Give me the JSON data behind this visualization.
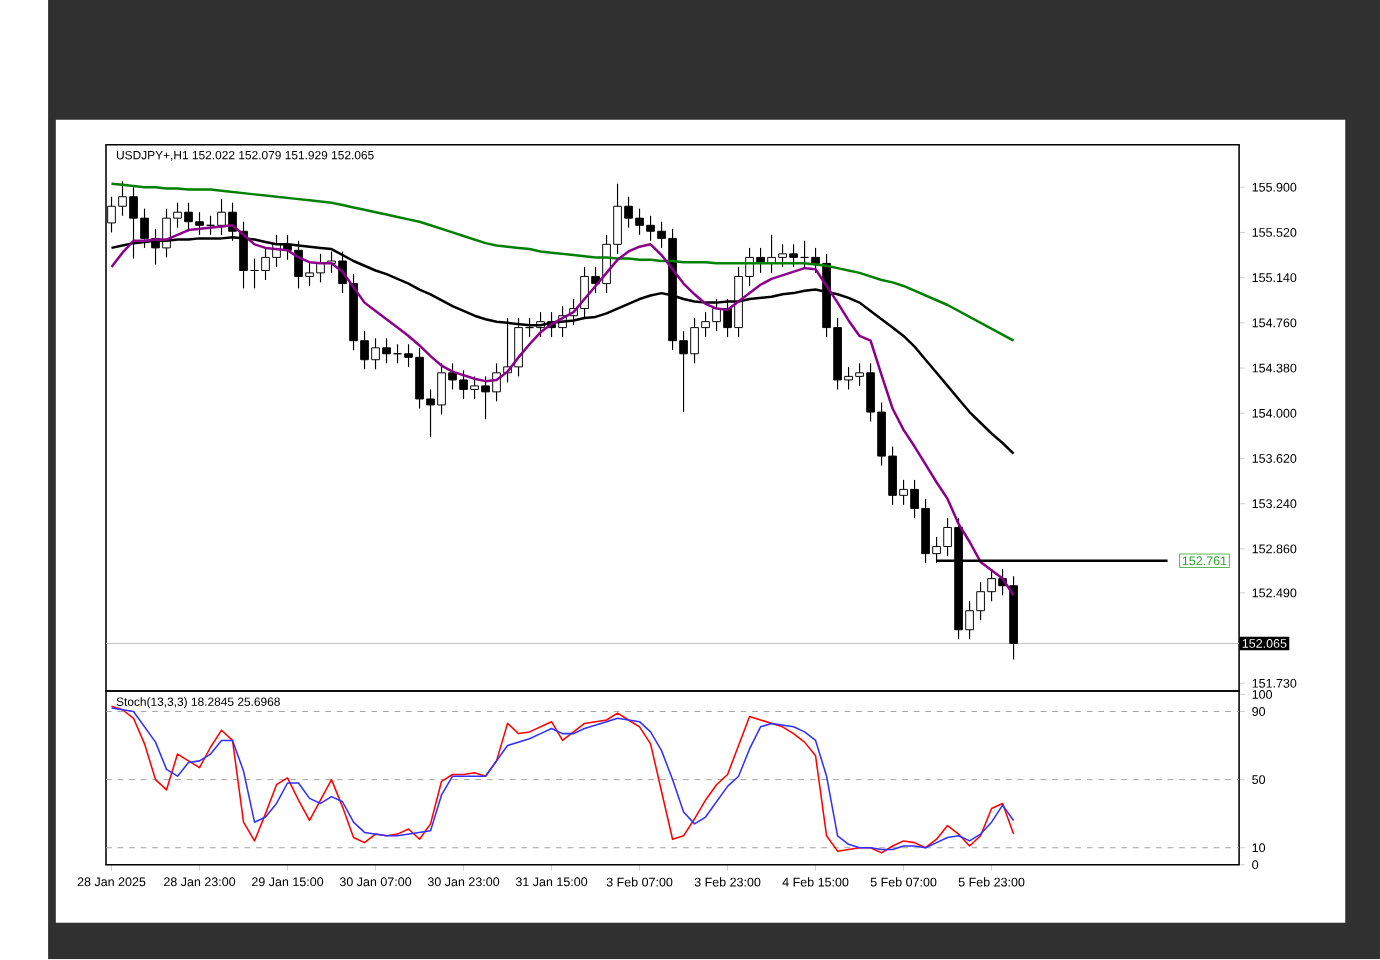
{
  "chart_data": [
    {
      "type": "candlestick",
      "title": "USDJPY+,H1  152.022 152.079 151.929 152.065",
      "color": "#000000",
      "categories": [
        null,
        null,
        null,
        null,
        null,
        null,
        null,
        null,
        null,
        null,
        null,
        null,
        null,
        null,
        null,
        null,
        null,
        null,
        null,
        null,
        null,
        null,
        null,
        null,
        null,
        null,
        null,
        null,
        null,
        null,
        null,
        null,
        null,
        null,
        null,
        null,
        null,
        null,
        null,
        null,
        null,
        null,
        null,
        null,
        null,
        null,
        null,
        null,
        null,
        null,
        null,
        null,
        null,
        null,
        null,
        null,
        null,
        null,
        null,
        null,
        null,
        null,
        null,
        null,
        null,
        null,
        null,
        null,
        null,
        null,
        null,
        null,
        null,
        null,
        null,
        null,
        null,
        null,
        null,
        null,
        null,
        null,
        null,
        null,
        null,
        null,
        null,
        null,
        null,
        null,
        null,
        null,
        null,
        null,
        null,
        null,
        null,
        null,
        null,
        null,
        null,
        null,
        null
      ],
      "ohlc": [
        [
          155.6,
          155.82,
          155.52,
          155.74
        ],
        [
          155.74,
          155.95,
          155.66,
          155.82
        ],
        [
          155.82,
          155.9,
          155.3,
          155.64
        ],
        [
          155.64,
          155.72,
          155.39,
          155.47
        ],
        [
          155.47,
          155.55,
          155.25,
          155.39
        ],
        [
          155.39,
          155.72,
          155.31,
          155.64
        ],
        [
          155.64,
          155.77,
          155.56,
          155.69
        ],
        [
          155.69,
          155.77,
          155.53,
          155.61
        ],
        [
          155.61,
          155.69,
          155.5,
          155.58
        ],
        [
          155.58,
          155.66,
          155.5,
          155.58
        ],
        [
          155.58,
          155.8,
          155.5,
          155.69
        ],
        [
          155.69,
          155.77,
          155.45,
          155.53
        ],
        [
          155.53,
          155.61,
          155.05,
          155.2
        ],
        [
          155.2,
          155.3,
          155.05,
          155.2
        ],
        [
          155.2,
          155.39,
          155.12,
          155.31
        ],
        [
          155.31,
          155.5,
          155.23,
          155.42
        ],
        [
          155.42,
          155.5,
          155.29,
          155.37
        ],
        [
          155.37,
          155.45,
          155.05,
          155.15
        ],
        [
          155.15,
          155.26,
          155.07,
          155.18
        ],
        [
          155.18,
          155.34,
          155.1,
          155.26
        ],
        [
          155.26,
          155.36,
          155.18,
          155.28
        ],
        [
          155.28,
          155.36,
          155.01,
          155.09
        ],
        [
          155.09,
          155.17,
          154.53,
          154.61
        ],
        [
          154.61,
          154.69,
          154.37,
          154.45
        ],
        [
          154.45,
          154.63,
          154.37,
          154.55
        ],
        [
          154.55,
          154.63,
          154.42,
          154.5
        ],
        [
          154.5,
          154.58,
          154.42,
          154.5
        ],
        [
          154.5,
          154.58,
          154.39,
          154.47
        ],
        [
          154.47,
          154.55,
          154.04,
          154.12
        ],
        [
          154.12,
          154.2,
          153.8,
          154.07
        ],
        [
          154.07,
          154.42,
          153.99,
          154.34
        ],
        [
          154.34,
          154.42,
          154.2,
          154.28
        ],
        [
          154.28,
          154.36,
          154.12,
          154.2
        ],
        [
          154.2,
          154.31,
          154.12,
          154.23
        ],
        [
          154.23,
          154.31,
          153.95,
          154.18
        ],
        [
          154.18,
          154.42,
          154.1,
          154.34
        ],
        [
          154.34,
          154.8,
          154.26,
          154.39
        ],
        [
          154.39,
          154.8,
          154.31,
          154.72
        ],
        [
          154.72,
          154.8,
          154.64,
          154.72
        ],
        [
          154.72,
          154.85,
          154.64,
          154.77
        ],
        [
          154.77,
          154.85,
          154.64,
          154.72
        ],
        [
          154.72,
          154.9,
          154.64,
          154.82
        ],
        [
          154.82,
          154.96,
          154.74,
          154.88
        ],
        [
          154.88,
          155.23,
          154.8,
          155.15
        ],
        [
          155.15,
          155.23,
          155.01,
          155.09
        ],
        [
          155.09,
          155.5,
          155.01,
          155.42
        ],
        [
          155.42,
          155.93,
          155.34,
          155.74
        ],
        [
          155.74,
          155.82,
          155.56,
          155.64
        ],
        [
          155.64,
          155.72,
          155.5,
          155.58
        ],
        [
          155.58,
          155.66,
          155.45,
          155.53
        ],
        [
          155.53,
          155.61,
          155.39,
          155.47
        ],
        [
          155.47,
          155.55,
          154.53,
          154.61
        ],
        [
          154.61,
          154.69,
          154.01,
          154.5
        ],
        [
          154.5,
          154.8,
          154.42,
          154.72
        ],
        [
          154.72,
          154.85,
          154.64,
          154.77
        ],
        [
          154.77,
          154.96,
          154.69,
          154.88
        ],
        [
          154.88,
          154.96,
          154.64,
          154.72
        ],
        [
          154.72,
          155.23,
          154.64,
          155.15
        ],
        [
          155.15,
          155.39,
          155.07,
          155.31
        ],
        [
          155.31,
          155.39,
          155.18,
          155.26
        ],
        [
          155.26,
          155.5,
          155.18,
          155.31
        ],
        [
          155.31,
          155.42,
          155.23,
          155.34
        ],
        [
          155.34,
          155.42,
          155.23,
          155.31
        ],
        [
          155.31,
          155.45,
          155.23,
          155.31
        ],
        [
          155.31,
          155.39,
          155.18,
          155.26
        ],
        [
          155.26,
          155.34,
          154.64,
          154.72
        ],
        [
          154.72,
          154.8,
          154.2,
          154.28
        ],
        [
          154.28,
          154.39,
          154.2,
          154.31
        ],
        [
          154.31,
          154.42,
          154.23,
          154.34
        ],
        [
          154.34,
          154.42,
          153.93,
          154.01
        ],
        [
          154.01,
          154.09,
          153.56,
          153.64
        ],
        [
          153.64,
          153.72,
          153.23,
          153.31
        ],
        [
          153.31,
          153.44,
          153.23,
          153.36
        ],
        [
          153.36,
          153.44,
          153.12,
          153.2
        ],
        [
          153.2,
          153.28,
          152.74,
          152.82
        ],
        [
          152.82,
          152.96,
          152.74,
          152.88
        ],
        [
          152.88,
          153.12,
          152.8,
          153.04
        ],
        [
          153.04,
          153.12,
          152.1,
          152.18
        ],
        [
          152.18,
          152.42,
          152.1,
          152.34
        ],
        [
          152.34,
          152.58,
          152.26,
          152.5
        ],
        [
          152.5,
          152.69,
          152.42,
          152.61
        ],
        [
          152.61,
          152.69,
          152.47,
          152.55
        ],
        [
          152.55,
          152.63,
          151.93,
          152.065
        ],
        null,
        null,
        null,
        null,
        null,
        null,
        null,
        null,
        null,
        null,
        null,
        null,
        null,
        null,
        null,
        null,
        null,
        null,
        null,
        null
      ],
      "series": [
        {
          "type": "line",
          "color": "#008000",
          "values": [
            155.93,
            155.92,
            155.91,
            155.9,
            155.9,
            155.89,
            155.89,
            155.88,
            155.88,
            155.88,
            155.87,
            155.86,
            155.85,
            155.84,
            155.83,
            155.82,
            155.81,
            155.8,
            155.79,
            155.78,
            155.77,
            155.75,
            155.73,
            155.71,
            155.69,
            155.67,
            155.65,
            155.63,
            155.61,
            155.58,
            155.55,
            155.52,
            155.49,
            155.46,
            155.43,
            155.41,
            155.4,
            155.39,
            155.38,
            155.36,
            155.35,
            155.34,
            155.33,
            155.32,
            155.31,
            155.31,
            155.3,
            155.3,
            155.29,
            155.29,
            155.28,
            155.28,
            155.27,
            155.27,
            155.27,
            155.26,
            155.26,
            155.26,
            155.26,
            155.26,
            155.26,
            155.26,
            155.26,
            155.26,
            155.25,
            155.24,
            155.22,
            155.2,
            155.18,
            155.15,
            155.12,
            155.1,
            155.07,
            155.03,
            154.99,
            154.95,
            154.91,
            154.86,
            154.81,
            154.76,
            154.71,
            154.66,
            154.61,
            null,
            null,
            null,
            null,
            null,
            null,
            null,
            null,
            null,
            null,
            null,
            null,
            null,
            null,
            null,
            null,
            null,
            null,
            null,
            null
          ]
        },
        {
          "type": "line",
          "color": "#000000",
          "values": [
            155.39,
            155.41,
            155.43,
            155.44,
            155.45,
            155.45,
            155.46,
            155.46,
            155.47,
            155.47,
            155.47,
            155.48,
            155.47,
            155.46,
            155.44,
            155.42,
            155.42,
            155.41,
            155.4,
            155.39,
            155.38,
            155.33,
            155.28,
            155.24,
            155.2,
            155.17,
            155.13,
            155.09,
            155.04,
            155.0,
            154.95,
            154.9,
            154.86,
            154.82,
            154.79,
            154.77,
            154.76,
            154.75,
            154.74,
            154.74,
            154.76,
            154.77,
            154.78,
            154.8,
            154.81,
            154.84,
            154.88,
            154.92,
            154.96,
            154.99,
            155.01,
            154.99,
            154.96,
            154.94,
            154.93,
            154.93,
            154.94,
            154.94,
            154.96,
            154.97,
            154.98,
            155.0,
            155.01,
            155.03,
            155.04,
            155.02,
            155.0,
            154.97,
            154.93,
            154.86,
            154.79,
            154.72,
            154.65,
            154.56,
            154.45,
            154.34,
            154.23,
            154.12,
            154.01,
            153.92,
            153.83,
            153.75,
            153.66,
            null,
            null,
            null,
            null,
            null,
            null,
            null,
            null,
            null,
            null,
            null,
            null,
            null,
            null,
            null,
            null,
            null,
            null,
            null,
            null
          ]
        },
        {
          "type": "line",
          "color": "#8b008b",
          "values": [
            155.23,
            155.35,
            155.45,
            155.45,
            155.46,
            155.46,
            155.5,
            155.54,
            155.55,
            155.56,
            155.57,
            155.58,
            155.5,
            155.42,
            155.39,
            155.38,
            155.37,
            155.31,
            155.27,
            155.26,
            155.26,
            155.19,
            155.06,
            154.93,
            154.86,
            154.79,
            154.72,
            154.65,
            154.57,
            154.48,
            154.4,
            154.35,
            154.32,
            154.29,
            154.27,
            154.28,
            154.35,
            154.47,
            154.58,
            154.68,
            154.75,
            154.8,
            154.85,
            154.96,
            155.07,
            155.18,
            155.29,
            155.36,
            155.4,
            155.42,
            155.33,
            155.21,
            155.09,
            155.0,
            154.92,
            154.88,
            154.87,
            154.94,
            155.01,
            155.08,
            155.13,
            155.16,
            155.19,
            155.22,
            155.21,
            155.07,
            154.93,
            154.78,
            154.65,
            154.61,
            154.32,
            154.04,
            153.86,
            153.72,
            153.57,
            153.42,
            153.28,
            153.07,
            152.92,
            152.75,
            152.68,
            152.61,
            152.47,
            null,
            null,
            null,
            null,
            null,
            null,
            null,
            null,
            null,
            null,
            null,
            null,
            null,
            null,
            null,
            null,
            null,
            null,
            null,
            null
          ]
        },
        {
          "type": "line",
          "color": "#000000",
          "values": [
            null,
            null,
            null,
            null,
            null,
            null,
            null,
            null,
            null,
            null,
            null,
            null,
            null,
            null,
            null,
            null,
            null,
            null,
            null,
            null,
            null,
            null,
            null,
            null,
            null,
            null,
            null,
            null,
            null,
            null,
            null,
            null,
            null,
            null,
            null,
            null,
            null,
            null,
            null,
            null,
            null,
            null,
            null,
            null,
            null,
            null,
            null,
            null,
            null,
            null,
            null,
            null,
            null,
            null,
            null,
            null,
            null,
            null,
            null,
            null,
            null,
            null,
            null,
            null,
            null,
            null,
            null,
            null,
            null,
            null,
            null,
            null,
            null,
            null,
            null,
            152.76,
            152.76,
            152.76,
            152.76,
            152.76,
            152.76,
            152.76,
            152.76,
            152.76,
            152.76,
            152.76,
            152.76,
            152.76,
            152.76,
            152.76,
            152.76,
            152.76,
            152.76,
            152.76,
            152.76,
            152.76,
            152.76,
            null,
            null,
            null,
            null,
            null,
            null
          ]
        }
      ],
      "ref_lines": [
        {
          "axis": "y",
          "value": 152.065,
          "label": "152.065",
          "color": "#c0c0c0",
          "line_style": "solid"
        }
      ],
      "annotations": [
        "152.761"
      ],
      "ylim": [
        151.665,
        156.257
      ],
      "yticks": [
        {
          "value": 155.9,
          "label": "155.900"
        },
        {
          "value": 155.52,
          "label": "155.520"
        },
        {
          "value": 155.14,
          "label": "155.140"
        },
        {
          "value": 154.76,
          "label": "154.760"
        },
        {
          "value": 154.38,
          "label": "154.380"
        },
        {
          "value": 154.0,
          "label": "154.000"
        },
        {
          "value": 153.62,
          "label": "153.620"
        },
        {
          "value": 153.24,
          "label": "153.240"
        },
        {
          "value": 152.86,
          "label": "152.860"
        },
        {
          "value": 152.49,
          "label": "152.490"
        },
        {
          "value": 151.73,
          "label": "151.730"
        }
      ],
      "tick_labels": "y"
    },
    {
      "type": "line",
      "title": "Stoch(13,3,3) 18.2845 25.6968",
      "categories": [
        "28 Jan 2025",
        null,
        null,
        null,
        null,
        null,
        null,
        null,
        "28 Jan 23:00",
        null,
        null,
        null,
        null,
        null,
        null,
        null,
        "29 Jan 15:00",
        null,
        null,
        null,
        null,
        null,
        null,
        null,
        "30 Jan 07:00",
        null,
        null,
        null,
        null,
        null,
        null,
        null,
        "30 Jan 23:00",
        null,
        null,
        null,
        null,
        null,
        null,
        null,
        "31 Jan 15:00",
        null,
        null,
        null,
        null,
        null,
        null,
        null,
        "3 Feb 07:00",
        null,
        null,
        null,
        null,
        null,
        null,
        null,
        "3 Feb 23:00",
        null,
        null,
        null,
        null,
        null,
        null,
        null,
        "4 Feb 15:00",
        null,
        null,
        null,
        null,
        null,
        null,
        null,
        "5 Feb 07:00",
        null,
        null,
        null,
        null,
        null,
        null,
        null,
        "5 Feb 23:00",
        null,
        null,
        null,
        null,
        null,
        null,
        null,
        null,
        null,
        null,
        null,
        null,
        null,
        null,
        null,
        null,
        null,
        null,
        null,
        null,
        null,
        null
      ],
      "series": [
        {
          "color": "#ff0000",
          "values": [
            93,
            91,
            86,
            71,
            50,
            44,
            65,
            61,
            57,
            69,
            79,
            73,
            25,
            14,
            30,
            47,
            51,
            38,
            26,
            38,
            50,
            34,
            16,
            13,
            18,
            17,
            18,
            21,
            15,
            24,
            49,
            53,
            53,
            54,
            52,
            61,
            83,
            77,
            78,
            81,
            84,
            73,
            78,
            83,
            84,
            85,
            89,
            85,
            81,
            71,
            43,
            15,
            17,
            27,
            38,
            47,
            53,
            70,
            87,
            85,
            83,
            81,
            77,
            72,
            64,
            17,
            8,
            9,
            10,
            10,
            7,
            11,
            14,
            13,
            10,
            15,
            23,
            18,
            11,
            17,
            33,
            36,
            18,
            null,
            null,
            null,
            null,
            null,
            null,
            null,
            null,
            null,
            null,
            null,
            null,
            null,
            null,
            null,
            null,
            null,
            null,
            null,
            null
          ]
        },
        {
          "color": "#3030ff",
          "values": [
            92,
            91,
            90,
            81,
            72,
            56,
            52,
            60,
            61,
            65,
            73,
            73,
            55,
            25,
            28,
            36,
            48,
            48,
            39,
            36,
            40,
            37,
            25,
            19,
            18,
            17,
            17,
            18,
            19,
            20,
            41,
            52,
            52,
            52,
            52,
            61,
            70,
            72,
            74,
            77,
            80,
            77,
            77,
            80,
            82,
            84,
            86,
            85,
            84,
            78,
            67,
            50,
            31,
            24,
            28,
            37,
            46,
            52,
            68,
            81,
            83,
            82,
            81,
            78,
            73,
            52,
            17,
            12,
            10,
            10,
            9,
            9,
            11,
            11,
            10,
            13,
            16,
            17,
            14,
            18,
            25,
            35,
            26,
            null,
            null,
            null,
            null,
            null,
            null,
            null,
            null,
            null,
            null,
            null,
            null,
            null,
            null,
            null,
            null,
            null,
            null,
            null,
            null
          ]
        }
      ],
      "ref_lines": [
        {
          "axis": "y",
          "value": 90,
          "color": "#a0a0a0",
          "line_style": "dashed"
        },
        {
          "axis": "y",
          "value": 50,
          "color": "#a0a0a0",
          "line_style": "dashed"
        },
        {
          "axis": "y",
          "value": 10,
          "color": "#a0a0a0",
          "line_style": "dashed"
        }
      ],
      "ylim": [
        0,
        102
      ],
      "yticks": [
        100,
        90,
        50,
        10,
        0
      ]
    }
  ]
}
